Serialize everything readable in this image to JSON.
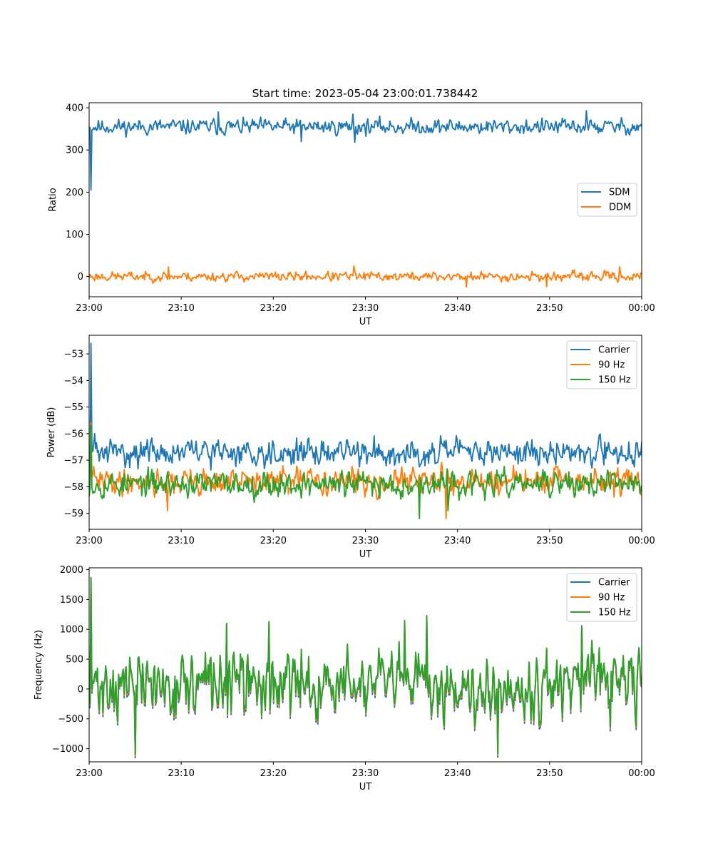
{
  "figure": {
    "title": "Start time: 2023-05-04 23:00:01.738442"
  },
  "chart_data": [
    {
      "type": "line",
      "title": "Start time: 2023-05-04 23:00:01.738442",
      "xlabel": "UT",
      "ylabel": "Ratio",
      "x_range_minutes": [
        0,
        60
      ],
      "x_ticks": [
        "23:00",
        "23:10",
        "23:20",
        "23:30",
        "23:40",
        "23:50",
        "00:00"
      ],
      "y_ticks": [
        "0",
        "100",
        "200",
        "300",
        "400"
      ],
      "ylim": [
        -48,
        412
      ],
      "grid": false,
      "legend_position": "center-right",
      "series": [
        {
          "name": "SDM",
          "color": "#1f77b4",
          "mean": 355,
          "amplitude": 13,
          "seed": 11,
          "spikes": [
            [
              0.2,
              205
            ],
            [
              23.0,
              320
            ],
            [
              28.8,
              318
            ],
            [
              28.6,
              385
            ],
            [
              54.0,
              393
            ],
            [
              14.0,
              390
            ]
          ]
        },
        {
          "name": "DDM",
          "color": "#ff7f0e",
          "mean": 0,
          "amplitude": 8,
          "seed": 23,
          "spikes": [
            [
              28.7,
              25
            ],
            [
              41.0,
              -25
            ],
            [
              49.7,
              -24
            ],
            [
              57.6,
              23
            ],
            [
              8.6,
              23
            ]
          ]
        }
      ]
    },
    {
      "type": "line",
      "xlabel": "UT",
      "ylabel": "Power (dB)",
      "x_range_minutes": [
        0,
        60
      ],
      "x_ticks": [
        "23:00",
        "23:10",
        "23:20",
        "23:30",
        "23:40",
        "23:50",
        "00:00"
      ],
      "y_ticks": [
        "−53",
        "−54",
        "−55",
        "−56",
        "−57",
        "−58",
        "−59"
      ],
      "ylim": [
        -59.6,
        -52.3
      ],
      "grid": false,
      "legend_position": "upper-right",
      "series": [
        {
          "name": "Carrier",
          "color": "#1f77b4",
          "mean": -56.7,
          "amplitude": 0.35,
          "seed": 31,
          "spikes": [
            [
              0.25,
              -52.6
            ],
            [
              0.1,
              -57.5
            ],
            [
              0.6,
              -56.0
            ]
          ]
        },
        {
          "name": "90 Hz",
          "color": "#ff7f0e",
          "mean": -57.8,
          "amplitude": 0.35,
          "seed": 41,
          "spikes": [
            [
              0.2,
              -55.6
            ],
            [
              8.5,
              -58.9
            ],
            [
              38.8,
              -59.2
            ]
          ]
        },
        {
          "name": "150 Hz",
          "color": "#2ca02c",
          "mean": -57.9,
          "amplitude": 0.35,
          "seed": 53,
          "spikes": [
            [
              0.25,
              -55.7
            ],
            [
              35.9,
              -59.2
            ],
            [
              39.0,
              -58.9
            ]
          ]
        }
      ]
    },
    {
      "type": "line",
      "xlabel": "UT",
      "ylabel": "Frequency (Hz)",
      "x_range_minutes": [
        0,
        60
      ],
      "x_ticks": [
        "23:00",
        "23:10",
        "23:20",
        "23:30",
        "23:40",
        "23:50",
        "00:00"
      ],
      "y_ticks": [
        "−1000",
        "−500",
        "0",
        "500",
        "1000",
        "1500",
        "2000"
      ],
      "ylim": [
        -1220,
        2030
      ],
      "grid": false,
      "legend_position": "upper-right",
      "series": [
        {
          "name": "Carrier",
          "color": "#1f77b4",
          "offset": -60
        },
        {
          "name": "90 Hz",
          "color": "#ff7f0e",
          "offset": -25
        },
        {
          "name": "150 Hz",
          "color": "#2ca02c",
          "offset": 0
        }
      ],
      "base_signal": {
        "mean": 80,
        "amplitude": 380,
        "seed": 71,
        "spikes": [
          [
            0.25,
            1870
          ],
          [
            0.1,
            -250
          ],
          [
            5.0,
            -1090
          ],
          [
            14.9,
            1100
          ],
          [
            19.5,
            1130
          ],
          [
            36.7,
            1230
          ],
          [
            44.4,
            -1080
          ],
          [
            53.5,
            1060
          ],
          [
            34.3,
            1150
          ]
        ]
      }
    }
  ]
}
